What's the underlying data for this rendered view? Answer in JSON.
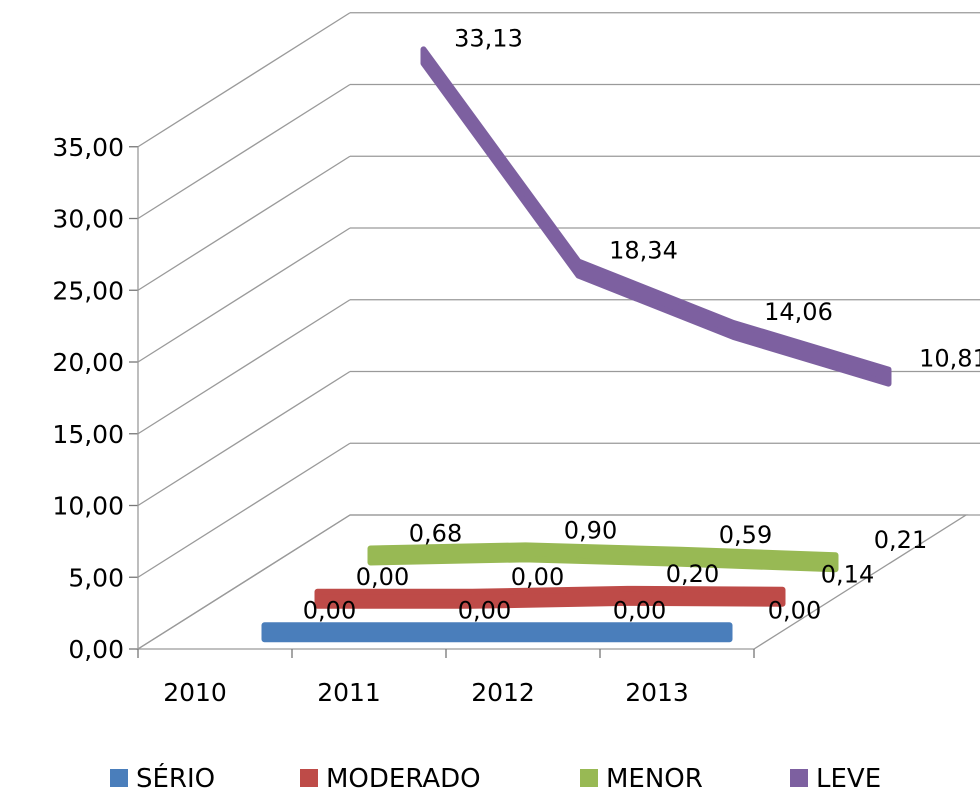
{
  "chart_data": {
    "type": "line",
    "style": "3d",
    "title": "",
    "xlabel": "",
    "ylabel": "",
    "categories": [
      "2010",
      "2011",
      "2012",
      "2013"
    ],
    "ylim": [
      0,
      35
    ],
    "y_ticks": [
      "0,00",
      "5,00",
      "10,00",
      "15,00",
      "20,00",
      "25,00",
      "30,00",
      "35,00"
    ],
    "grid": true,
    "legend_position": "bottom",
    "series": [
      {
        "name": "SÉRIO",
        "color": "#4A7EBB",
        "values": [
          0.0,
          0.0,
          0.0,
          0.0
        ],
        "labels": [
          "0,00",
          "0,00",
          "0,00",
          "0,00"
        ]
      },
      {
        "name": "MODERADO",
        "color": "#BE4B48",
        "values": [
          0.0,
          0.0,
          0.2,
          0.14
        ],
        "labels": [
          "0,00",
          "0,00",
          "0,20",
          "0,14"
        ]
      },
      {
        "name": "MENOR",
        "color": "#98B954",
        "values": [
          0.68,
          0.9,
          0.59,
          0.21
        ],
        "labels": [
          "0,68",
          "0,90",
          "0,59",
          "0,21"
        ]
      },
      {
        "name": "LEVE",
        "color": "#7D60A0",
        "values": [
          33.13,
          18.34,
          14.06,
          10.81
        ],
        "labels": [
          "33,13",
          "18,34",
          "14,06",
          "10,81"
        ]
      }
    ]
  }
}
